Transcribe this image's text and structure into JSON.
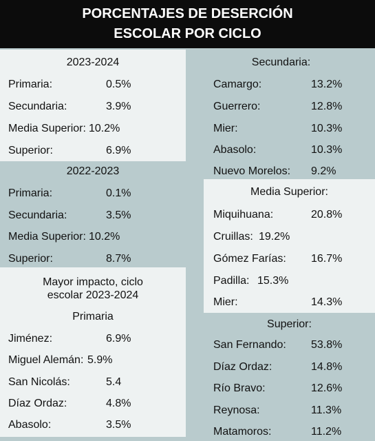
{
  "header": {
    "line1": "PORCENTAJES DE DESERCIÓN",
    "line2": "ESCOLAR POR CICLO"
  },
  "y2023": {
    "title": "2023-2024",
    "rows": [
      {
        "label": "Primaria:",
        "value": "0.5%"
      },
      {
        "label": "Secundaria:",
        "value": "3.9%"
      },
      {
        "label": "Media Superior:",
        "value": "10.2%"
      },
      {
        "label": "Superior:",
        "value": "6.9%"
      }
    ]
  },
  "y2022": {
    "title": "2022-2023",
    "rows": [
      {
        "label": "Primaria:",
        "value": "0.1%"
      },
      {
        "label": "Secundaria:",
        "value": "3.5%"
      },
      {
        "label": "Media Superior:",
        "value": "10.2%"
      },
      {
        "label": "Superior:",
        "value": "8.7%"
      }
    ]
  },
  "impacto": {
    "title_line1": "Mayor impacto, ciclo",
    "title_line2": "escolar 2023-2024",
    "subtitle": "Primaria",
    "rows": [
      {
        "label": "Jiménez:",
        "value": "6.9%"
      },
      {
        "label": "Miguel Alemán:",
        "value": "5.9%"
      },
      {
        "label": "San Nicolás:",
        "value": "5.4"
      },
      {
        "label": "Díaz Ordaz:",
        "value": "4.8%"
      },
      {
        "label": "Abasolo:",
        "value": "3.5%"
      }
    ]
  },
  "secundaria": {
    "title": "Secundaria:",
    "rows": [
      {
        "label": "Camargo:",
        "value": "13.2%"
      },
      {
        "label": "Guerrero:",
        "value": "12.8%"
      },
      {
        "label": "Mier:",
        "value": "10.3%"
      },
      {
        "label": "Abasolo:",
        "value": "10.3%"
      },
      {
        "label": "Nuevo Morelos:",
        "value": "9.2%"
      }
    ]
  },
  "media_superior": {
    "title": "Media Superior:",
    "rows": [
      {
        "label": "Miquihuana:",
        "value": "20.8%"
      },
      {
        "label": "Cruillas:",
        "value": "19.2%"
      },
      {
        "label": "Gómez Farías:",
        "value": "16.7%"
      },
      {
        "label": "Padilla:",
        "value": "15.3%"
      },
      {
        "label": "Mier:",
        "value": "14.3%"
      }
    ]
  },
  "superior": {
    "title": "Superior:",
    "rows": [
      {
        "label": "San Fernando:",
        "value": "53.8%"
      },
      {
        "label": "Díaz Ordaz:",
        "value": "14.8%"
      },
      {
        "label": "Río Bravo:",
        "value": "12.6%"
      },
      {
        "label": "Reynosa:",
        "value": "11.3%"
      },
      {
        "label": "Matamoros:",
        "value": "11.2%"
      }
    ]
  }
}
